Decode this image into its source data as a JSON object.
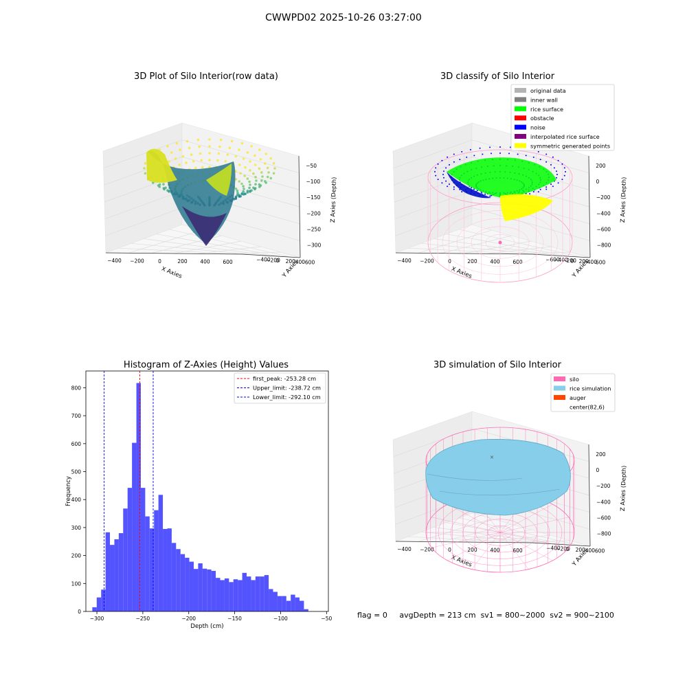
{
  "figure_title": "CWWPD02 2025-10-26 03:27:00",
  "status_line": {
    "flag": "flag = 0",
    "avg_depth": "avgDepth = 213 cm",
    "sv1": "sv1 = 800~2000",
    "sv2": "sv2 = 900~2100"
  },
  "colors": {
    "histogram_bar": "#4b4bff",
    "first_peak_line": "#ff0000",
    "limit_lines": "#0000ff",
    "silo": "#ff69b4",
    "rice_simulation": "#87ceeb",
    "auger": "#ff4500",
    "original_data": "#b3b3b3",
    "inner_wall": "#808080",
    "rice_surface": "#00ff00",
    "obstacle": "#ff0000",
    "noise": "#0000ff",
    "interpolated_rice_surface": "#800080",
    "symmetric_generated_points": "#ffff00"
  },
  "chart_data": [
    {
      "type": "scatter3d",
      "title": "3D Plot of Silo Interior(row data)",
      "xlabel": "X Axies",
      "ylabel": "Y Axies",
      "zlabel": "Z Axies (Depth)",
      "xticks": [
        "−400",
        "−200",
        "0",
        "200",
        "400",
        "600"
      ],
      "yticks": [
        "600",
        "400",
        "200",
        "0",
        "−200",
        "−400"
      ],
      "zticks": [
        "−50",
        "−100",
        "−150",
        "−200",
        "−250",
        "−300"
      ],
      "colormap": "viridis"
    },
    {
      "type": "scatter3d",
      "title": "3D classify of Silo Interior",
      "xlabel": "X Axies",
      "ylabel": "Y Axies",
      "zlabel": "Z Axies (Depth)",
      "xticks": [
        "−400",
        "−200",
        "0",
        "200",
        "400",
        "600"
      ],
      "yticks": [
        "600",
        "400",
        "200",
        "0",
        "−200",
        "−400",
        "−600"
      ],
      "zticks": [
        "200",
        "0",
        "−200",
        "−400",
        "−600",
        "−800"
      ],
      "zticks_hidden_top": "00",
      "legend": [
        "original data",
        "inner wall",
        "rice surface",
        "obstacle",
        "noise",
        "interpolated rice surface",
        "symmetric generated points"
      ],
      "legend_position": "top-right"
    },
    {
      "type": "bar",
      "title": "Histogram of Z-Axies (Height) Values",
      "xlabel": "Depth (cm)",
      "ylabel": "Frequency",
      "xlim": [
        -312,
        -48
      ],
      "ylim": [
        0,
        860
      ],
      "xticks": [
        -300,
        -250,
        -200,
        -150,
        -100,
        -50
      ],
      "xtick_labels": [
        "−300",
        "−250",
        "−200",
        "−150",
        "−100",
        "−50"
      ],
      "yticks": [
        0,
        100,
        200,
        300,
        400,
        500,
        600,
        700,
        800
      ],
      "bin_start": -305,
      "bin_width": 4.8,
      "values": [
        15,
        50,
        78,
        283,
        238,
        258,
        280,
        368,
        442,
        603,
        817,
        442,
        340,
        297,
        362,
        417,
        295,
        297,
        245,
        223,
        205,
        192,
        178,
        152,
        172,
        153,
        150,
        145,
        120,
        112,
        118,
        105,
        115,
        112,
        138,
        125,
        112,
        125,
        125,
        130,
        80,
        70,
        55,
        55,
        38,
        60,
        50,
        38,
        8
      ],
      "vlines": [
        {
          "value": -253.28,
          "label": "first_peak: -253.28 cm",
          "style": "first_peak"
        },
        {
          "value": -238.72,
          "label": "Upper_limit: -238.72 cm",
          "style": "limit"
        },
        {
          "value": -292.1,
          "label": "Lower_limit: -292.10 cm",
          "style": "limit"
        }
      ],
      "legend_position": "top-right"
    },
    {
      "type": "surface3d",
      "title": "3D simulation of Silo Interior",
      "xlabel": "X Axies",
      "ylabel": "Y Axies",
      "zlabel": "Z Axies (Depth)",
      "xticks": [
        "−400",
        "−200",
        "0",
        "200",
        "400",
        "600"
      ],
      "yticks": [
        "600",
        "400",
        "200",
        "0",
        "−200",
        "−400"
      ],
      "zticks": [
        "200",
        "0",
        "−200",
        "−400",
        "−600",
        "−800"
      ],
      "legend": [
        "silo",
        "rice simulation",
        "auger",
        "center(82,6)"
      ],
      "legend_position": "top-right"
    }
  ]
}
